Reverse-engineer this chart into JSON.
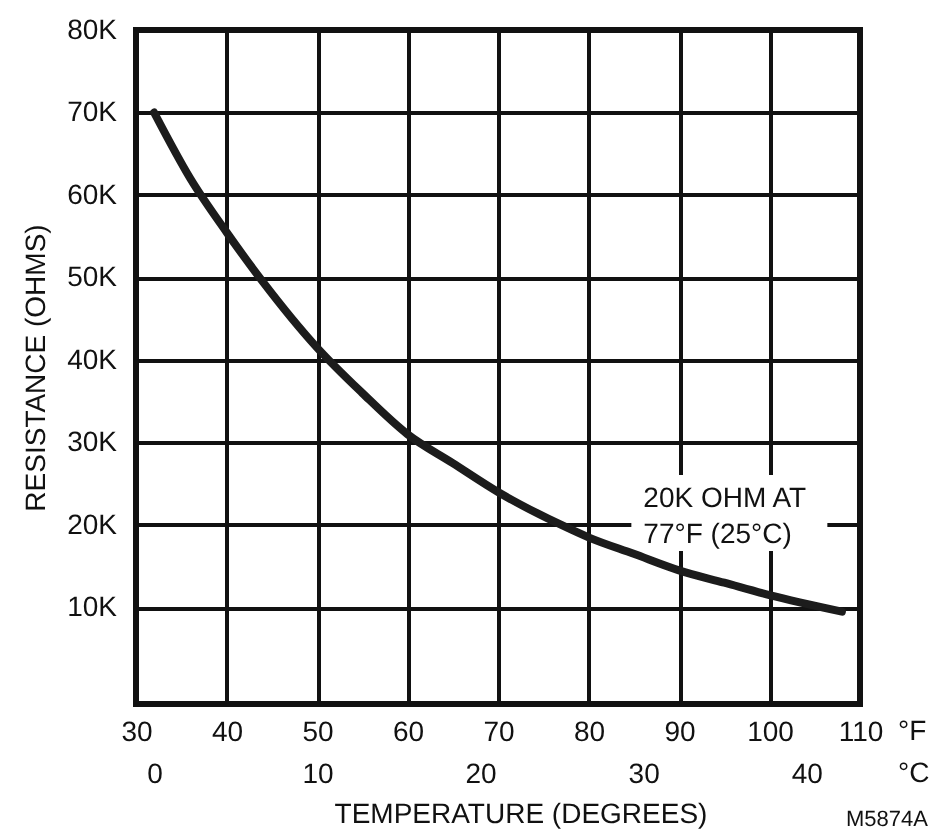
{
  "chart_data": {
    "type": "line",
    "xlabel": "TEMPERATURE (DEGREES)",
    "ylabel": "RESISTANCE (OHMS)",
    "x": [
      32,
      36,
      40,
      44,
      50,
      55,
      60,
      65,
      70,
      77,
      80,
      85,
      90,
      95,
      100,
      108
    ],
    "series": [
      {
        "color": "#1c1c1c",
        "values": [
          70000,
          62000,
          55500,
          49500,
          41500,
          36000,
          31000,
          27500,
          24000,
          20000,
          18500,
          16500,
          14500,
          13000,
          11500,
          9500
        ]
      }
    ],
    "xlim": [
      30,
      110
    ],
    "xticks": [
      30,
      40,
      50,
      60,
      70,
      80,
      90,
      100,
      110
    ],
    "x2lim": [
      -1.1,
      43.3
    ],
    "x2ticks": [
      0,
      10,
      20,
      30,
      40
    ],
    "ylim": [
      -1700,
      80000
    ],
    "yticks": [
      {
        "value": 10000,
        "label": "10K"
      },
      {
        "value": 20000,
        "label": "20K"
      },
      {
        "value": 30000,
        "label": "30K"
      },
      {
        "value": 40000,
        "label": "40K"
      },
      {
        "value": 50000,
        "label": "50K"
      },
      {
        "value": 60000,
        "label": "60K"
      },
      {
        "value": 70000,
        "label": "70K"
      },
      {
        "value": 80000,
        "label": "80K"
      }
    ],
    "grid": true,
    "marker": "none",
    "line_style": "solid",
    "annotations": [
      {
        "text": "20K OHM AT\n77°F (25°C)",
        "x": 77,
        "y": 20000
      },
      "°F",
      "°C",
      "M5874A"
    ]
  }
}
